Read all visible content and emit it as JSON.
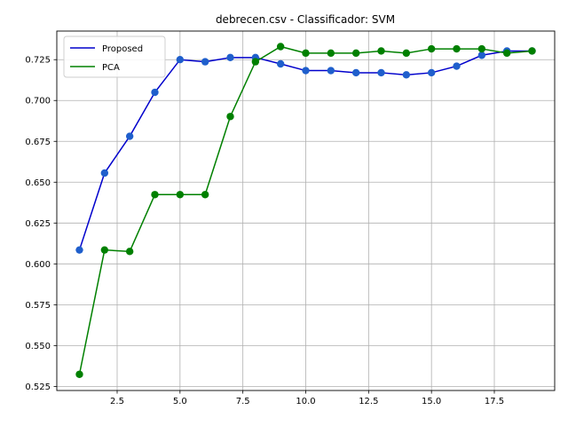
{
  "chart_data": {
    "type": "line",
    "title": "debrecen.csv - Classificador: SVM",
    "xlabel": "",
    "ylabel": "",
    "xlim": [
      0.1,
      19.9
    ],
    "ylim": [
      0.5225,
      0.7425
    ],
    "xticks": [
      2.5,
      5.0,
      7.5,
      10.0,
      12.5,
      15.0,
      17.5
    ],
    "xtick_labels": [
      "2.5",
      "5.0",
      "7.5",
      "10.0",
      "12.5",
      "15.0",
      "17.5"
    ],
    "yticks": [
      0.525,
      0.55,
      0.575,
      0.6,
      0.625,
      0.65,
      0.675,
      0.7,
      0.725
    ],
    "ytick_labels": [
      "0.525",
      "0.550",
      "0.575",
      "0.600",
      "0.625",
      "0.650",
      "0.675",
      "0.700",
      "0.725"
    ],
    "grid": true,
    "legend_position": "top-left",
    "x": [
      1,
      2,
      3,
      4,
      5,
      6,
      7,
      8,
      9,
      10,
      11,
      12,
      13,
      14,
      15,
      16,
      17,
      18,
      19
    ],
    "series": [
      {
        "name": "Proposed",
        "color": "#0000cc",
        "marker_color": "#1f5fcc",
        "values": [
          0.6085,
          0.6556,
          0.6781,
          0.705,
          0.725,
          0.7237,
          0.7263,
          0.7263,
          0.7224,
          0.7183,
          0.7183,
          0.717,
          0.717,
          0.7157,
          0.717,
          0.721,
          0.7277,
          0.7303,
          0.7303
        ]
      },
      {
        "name": "PCA",
        "color": "#008000",
        "marker_color": "#008000",
        "values": [
          0.5324,
          0.6085,
          0.6076,
          0.6424,
          0.6424,
          0.6424,
          0.6902,
          0.7237,
          0.733,
          0.729,
          0.729,
          0.729,
          0.7303,
          0.729,
          0.7316,
          0.7316,
          0.7316,
          0.729,
          0.7303
        ]
      }
    ]
  }
}
